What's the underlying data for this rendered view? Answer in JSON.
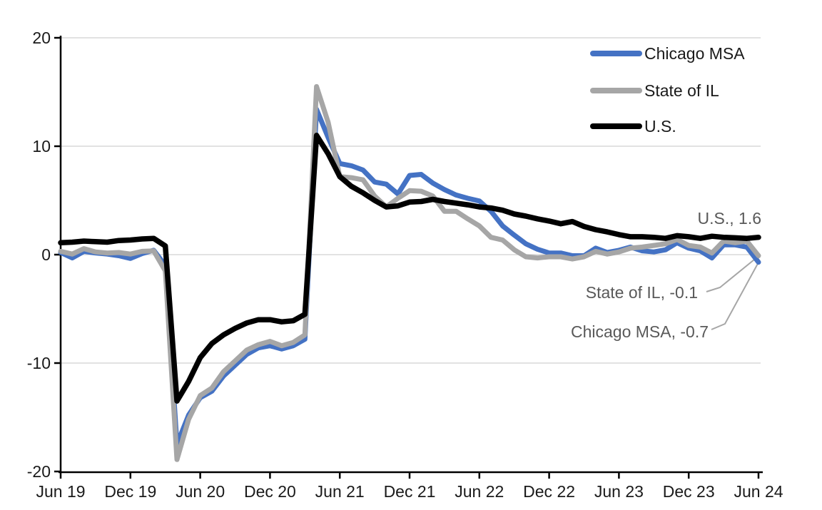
{
  "chart_data": {
    "type": "line",
    "title": "",
    "ylabel": "",
    "xlabel": "",
    "ylim": [
      -20,
      20
    ],
    "y_ticks": [
      20,
      10,
      0,
      -10,
      -20
    ],
    "grid": "horizontal",
    "legend_position": "top-right",
    "x": [
      "Jun 19",
      "Jul 19",
      "Aug 19",
      "Sep 19",
      "Oct 19",
      "Nov 19",
      "Dec 19",
      "Jan 20",
      "Feb 20",
      "Mar 20",
      "Apr 20",
      "May 20",
      "Jun 20",
      "Jul 20",
      "Aug 20",
      "Sep 20",
      "Oct 20",
      "Nov 20",
      "Dec 20",
      "Jan 21",
      "Feb 21",
      "Mar 21",
      "Apr 21",
      "May 21",
      "Jun 21",
      "Jul 21",
      "Aug 21",
      "Sep 21",
      "Oct 21",
      "Nov 21",
      "Dec 21",
      "Jan 22",
      "Feb 22",
      "Mar 22",
      "Apr 22",
      "May 22",
      "Jun 22",
      "Jul 22",
      "Aug 22",
      "Sep 22",
      "Oct 22",
      "Nov 22",
      "Dec 22",
      "Jan 23",
      "Feb 23",
      "Mar 23",
      "Apr 23",
      "May 23",
      "Jun 23",
      "Jul 23",
      "Aug 23",
      "Sep 23",
      "Oct 23",
      "Nov 23",
      "Dec 23",
      "Jan 24",
      "Feb 24",
      "Mar 24",
      "Apr 24",
      "May 24",
      "Jun 24"
    ],
    "x_tick_every": 6,
    "x_tick_labels": [
      "Jun 19",
      "Dec 19",
      "Jun 20",
      "Dec 20",
      "Jun 21",
      "Dec 21",
      "Jun 22",
      "Dec 22",
      "Jun 23",
      "Dec 23",
      "Jun 24"
    ],
    "series": [
      {
        "name": "Chicago MSA",
        "color": "#4472C4",
        "values": [
          0.2,
          -0.3,
          0.3,
          0.15,
          0.05,
          -0.1,
          -0.35,
          0.1,
          0.4,
          -1.0,
          -17.5,
          -14.8,
          -13.2,
          -12.6,
          -11.2,
          -10.2,
          -9.2,
          -8.6,
          -8.4,
          -8.7,
          -8.4,
          -7.8,
          13.4,
          10.8,
          8.4,
          8.2,
          7.8,
          6.7,
          6.5,
          5.6,
          7.3,
          7.4,
          6.6,
          6.0,
          5.5,
          5.2,
          4.95,
          4.0,
          2.65,
          1.8,
          1.0,
          0.5,
          0.15,
          0.15,
          -0.1,
          -0.1,
          0.6,
          0.2,
          0.4,
          0.7,
          0.35,
          0.25,
          0.45,
          1.1,
          0.6,
          0.35,
          -0.3,
          0.9,
          0.9,
          0.7,
          -0.7
        ]
      },
      {
        "name": "State of IL",
        "color": "#A6A6A6",
        "values": [
          0.3,
          0.05,
          0.55,
          0.25,
          0.15,
          0.2,
          0.05,
          0.3,
          0.35,
          -1.5,
          -18.9,
          -15.2,
          -13.0,
          -12.3,
          -10.8,
          -9.8,
          -8.8,
          -8.3,
          -8.0,
          -8.4,
          -8.1,
          -7.4,
          15.5,
          12.2,
          7.2,
          7.1,
          6.9,
          5.4,
          4.4,
          5.2,
          5.9,
          5.85,
          5.4,
          4.0,
          4.0,
          3.3,
          2.65,
          1.6,
          1.35,
          0.45,
          -0.2,
          -0.3,
          -0.2,
          -0.2,
          -0.4,
          -0.2,
          0.3,
          0.05,
          0.25,
          0.6,
          0.7,
          0.85,
          1.0,
          1.4,
          0.85,
          0.7,
          0.15,
          1.25,
          1.1,
          1.25,
          -0.1
        ]
      },
      {
        "name": "U.S.",
        "color": "#000000",
        "values": [
          1.1,
          1.15,
          1.25,
          1.2,
          1.15,
          1.3,
          1.35,
          1.45,
          1.5,
          0.8,
          -13.5,
          -11.7,
          -9.5,
          -8.2,
          -7.4,
          -6.8,
          -6.3,
          -6.0,
          -6.0,
          -6.2,
          -6.1,
          -5.5,
          11.0,
          9.3,
          7.2,
          6.3,
          5.7,
          5.0,
          4.4,
          4.5,
          4.85,
          4.9,
          5.1,
          4.9,
          4.75,
          4.6,
          4.4,
          4.3,
          4.1,
          3.75,
          3.55,
          3.3,
          3.1,
          2.85,
          3.05,
          2.6,
          2.3,
          2.1,
          1.85,
          1.65,
          1.65,
          1.6,
          1.5,
          1.75,
          1.65,
          1.5,
          1.7,
          1.6,
          1.55,
          1.5,
          1.6
        ]
      }
    ],
    "annotations": [
      {
        "text": "U.S., 1.6"
      },
      {
        "text": "State of IL, -0.1"
      },
      {
        "text": "Chicago MSA, -0.7"
      }
    ],
    "colors": {
      "gridline": "#D9D9D9",
      "axis": "#000000",
      "tick_label": "#1A1A1A",
      "annotation_text": "#595959",
      "leader_line": "#A6A6A6"
    }
  }
}
